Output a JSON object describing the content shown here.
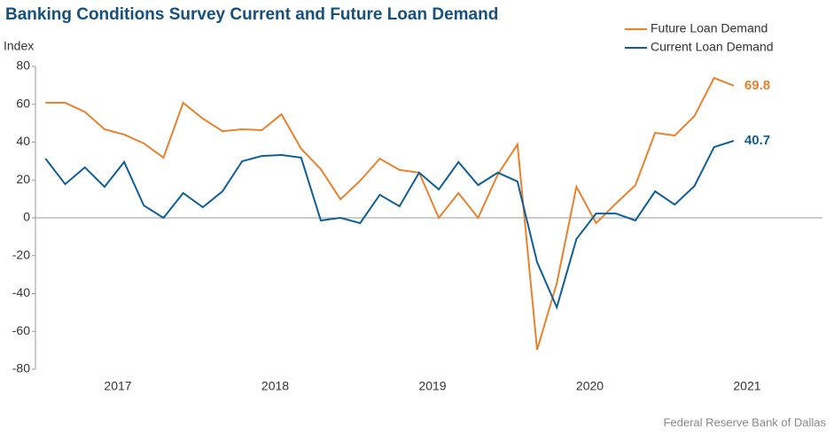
{
  "chart_data": {
    "type": "line",
    "title": "Banking Conditions Survey Current and Future Loan Demand",
    "y_label": "Index",
    "source": "Federal Reserve Bank of Dallas",
    "x": [
      2017.04,
      2017.165,
      2017.29,
      2017.415,
      2017.54,
      2017.665,
      2017.79,
      2017.915,
      2018.04,
      2018.165,
      2018.29,
      2018.415,
      2018.54,
      2018.665,
      2018.79,
      2018.915,
      2019.04,
      2019.165,
      2019.29,
      2019.415,
      2019.54,
      2019.665,
      2019.79,
      2019.915,
      2020.04,
      2020.165,
      2020.29,
      2020.415,
      2020.54,
      2020.665,
      2020.79,
      2020.915,
      2021.04,
      2021.165,
      2021.29,
      2021.415
    ],
    "series": [
      {
        "name": "Future Loan Demand",
        "color": "#e8822f",
        "values": [
          60.8,
          60.8,
          56,
          46.8,
          44,
          39.3,
          31.8,
          60.8,
          52.4,
          45.8,
          46.8,
          46.3,
          54.7,
          36.5,
          25.7,
          9.8,
          19.6,
          31.3,
          25.3,
          23.9,
          0,
          13.1,
          0,
          22.9,
          38.8,
          -69.7,
          -34.6,
          16.4,
          -2.8,
          7.5,
          17.3,
          44.9,
          43.5,
          53.8,
          73.9,
          69.8
        ]
      },
      {
        "name": "Current Loan Demand",
        "color": "#0f5f96",
        "values": [
          31.3,
          17.8,
          26.7,
          16.4,
          29.5,
          6.5,
          0,
          13.1,
          5.6,
          14,
          29.9,
          32.7,
          33.2,
          31.8,
          -1.4,
          0,
          -2.8,
          12.2,
          6.1,
          23.9,
          15,
          29.5,
          17.3,
          23.9,
          19.2,
          -23.4,
          -47.3,
          -11.2,
          2.3,
          2.3,
          -1.4,
          14,
          7,
          16.8,
          37.4,
          40.7
        ]
      }
    ],
    "xlim": [
      2016.976,
      2021.979
    ],
    "xticks": [
      {
        "value": 2017.5,
        "label": "2017"
      },
      {
        "value": 2018.5,
        "label": "2018"
      },
      {
        "value": 2019.5,
        "label": "2019"
      },
      {
        "value": 2020.5,
        "label": "2020"
      },
      {
        "value": 2021.5,
        "label": "2021"
      }
    ],
    "ylim": [
      -80,
      80
    ],
    "yticks": [
      -80,
      -60,
      -40,
      -20,
      0,
      20,
      40,
      60,
      80
    ],
    "legend": "top-right"
  }
}
